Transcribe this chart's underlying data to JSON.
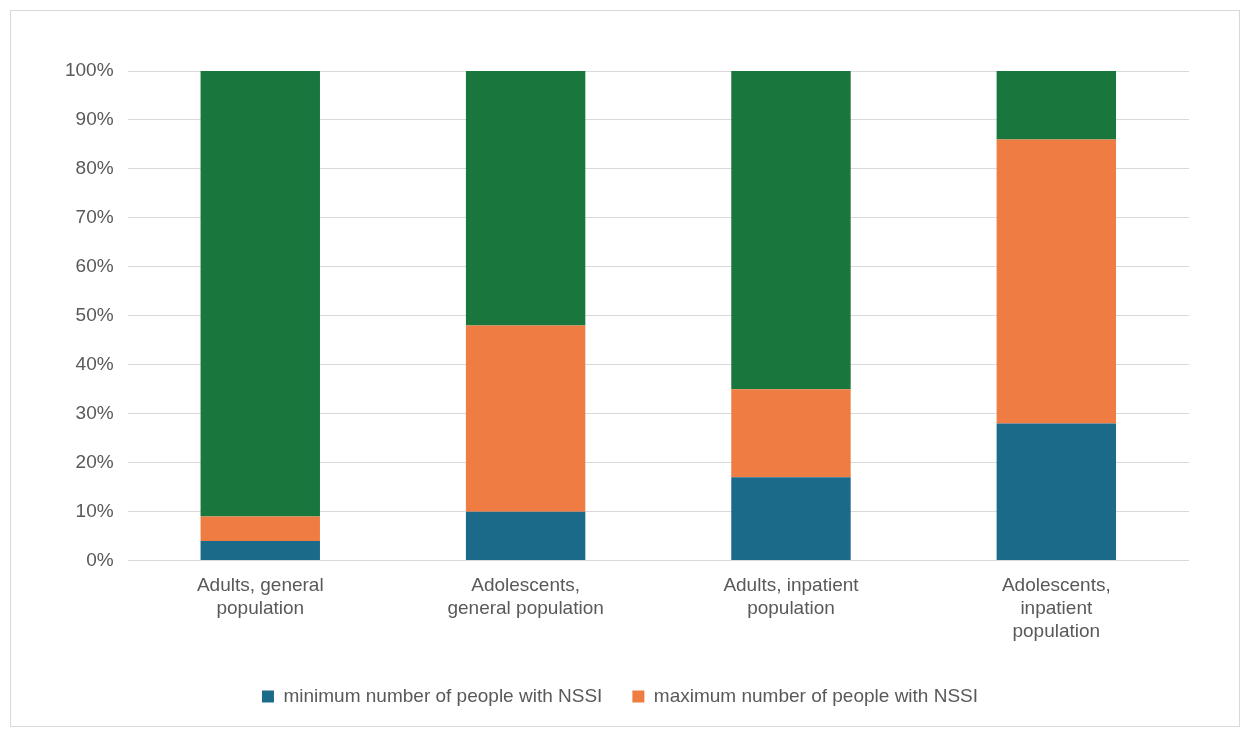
{
  "chart_data": {
    "type": "bar",
    "stacked": true,
    "categories": [
      [
        "Adults, general",
        "population"
      ],
      [
        "Adolescents,",
        "general population"
      ],
      [
        "Adults, inpatient",
        "population"
      ],
      [
        "Adolescents,",
        "inpatient",
        "population"
      ]
    ],
    "series": [
      {
        "name": "minimum number of people with NSSI",
        "color": "#1b6a8a",
        "values": [
          4,
          10,
          17,
          28
        ]
      },
      {
        "name": "maximum number of people with NSSI",
        "color": "#ef7d43",
        "values": [
          5,
          38,
          18,
          58
        ]
      },
      {
        "color": "#19763d",
        "values": [
          91,
          52,
          65,
          14
        ]
      }
    ],
    "ylim": [
      0,
      100
    ],
    "yticks": [
      {
        "value": 0,
        "label": "0%"
      },
      {
        "value": 10,
        "label": "10%"
      },
      {
        "value": 20,
        "label": "20%"
      },
      {
        "value": 30,
        "label": "30%"
      },
      {
        "value": 40,
        "label": "40%"
      },
      {
        "value": 50,
        "label": "50%"
      },
      {
        "value": 60,
        "label": "60%"
      },
      {
        "value": 70,
        "label": "70%"
      },
      {
        "value": 80,
        "label": "80%"
      },
      {
        "value": 90,
        "label": "90%"
      },
      {
        "value": 100,
        "label": "100%"
      }
    ],
    "grid": "y",
    "legend": "bottom"
  }
}
